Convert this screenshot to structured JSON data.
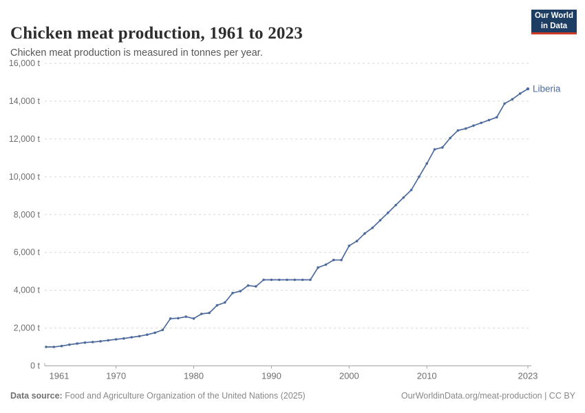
{
  "header": {
    "title": "Chicken meat production, 1961 to 2023",
    "subtitle": "Chicken meat production is measured in tonnes per year.",
    "logo_line1": "Our World",
    "logo_line2": "in Data"
  },
  "chart_data": {
    "type": "line",
    "title": "Chicken meat production, 1961 to 2023",
    "ylabel": "",
    "xlabel": "",
    "unit_suffix": " t",
    "ylim": [
      0,
      16000
    ],
    "ytick_step": 2000,
    "xticks": [
      1961,
      1970,
      1980,
      1990,
      2000,
      2010,
      2023
    ],
    "grid": "horizontal-dashed",
    "legend_position": "end-of-line-label",
    "line_color": "#4c6a9c",
    "grid_color": "#d6d6d6",
    "axis_color": "#a3a3a3",
    "tick_label_color": "#6e6e6e",
    "series": [
      {
        "name": "Liberia",
        "x": [
          1961,
          1962,
          1963,
          1964,
          1965,
          1966,
          1967,
          1968,
          1969,
          1970,
          1971,
          1972,
          1973,
          1974,
          1975,
          1976,
          1977,
          1978,
          1979,
          1980,
          1981,
          1982,
          1983,
          1984,
          1985,
          1986,
          1987,
          1988,
          1989,
          1990,
          1991,
          1992,
          1993,
          1994,
          1995,
          1996,
          1997,
          1998,
          1999,
          2000,
          2001,
          2002,
          2003,
          2004,
          2005,
          2006,
          2007,
          2008,
          2009,
          2010,
          2011,
          2012,
          2013,
          2014,
          2015,
          2016,
          2017,
          2018,
          2019,
          2020,
          2021,
          2022,
          2023
        ],
        "values": [
          1000,
          1000,
          1050,
          1120,
          1180,
          1230,
          1260,
          1300,
          1350,
          1400,
          1450,
          1510,
          1570,
          1650,
          1750,
          1900,
          2500,
          2520,
          2600,
          2500,
          2750,
          2800,
          3200,
          3350,
          3850,
          3950,
          4250,
          4200,
          4550,
          4550,
          4550,
          4550,
          4550,
          4550,
          4550,
          5200,
          5350,
          5600,
          5600,
          6350,
          6600,
          7000,
          7300,
          7700,
          8100,
          8500,
          8900,
          9300,
          10000,
          10700,
          11450,
          11550,
          12050,
          12450,
          12550,
          12700,
          12850,
          13000,
          13150,
          13870,
          14100,
          14400,
          14650
        ]
      }
    ]
  },
  "footer": {
    "datasource_label": "Data source:",
    "datasource_text": " Food and Agriculture Organization of the United Nations (2025)",
    "credit": "OurWorldinData.org/meat-production | CC BY"
  }
}
